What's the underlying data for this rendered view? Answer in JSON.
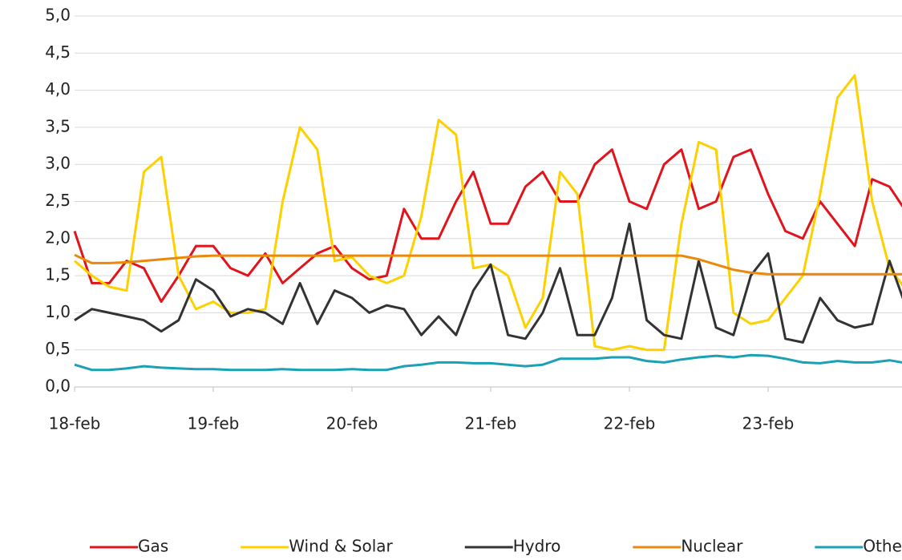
{
  "chart_data": {
    "type": "line",
    "categories": [
      "18-feb",
      null,
      null,
      null,
      null,
      null,
      null,
      null,
      "19-feb",
      null,
      null,
      null,
      null,
      null,
      null,
      null,
      "20-feb",
      null,
      null,
      null,
      null,
      null,
      null,
      null,
      "21-feb",
      null,
      null,
      null,
      null,
      null,
      null,
      null,
      "22-feb",
      null,
      null,
      null,
      null,
      null,
      null,
      null,
      "23-feb",
      null,
      null,
      null,
      null,
      null,
      null,
      null,
      null
    ],
    "series": [
      {
        "name": "Gas",
        "color": "#e1141c",
        "values": [
          2.1,
          1.4,
          1.4,
          1.7,
          1.6,
          1.15,
          1.5,
          1.9,
          1.9,
          1.6,
          1.5,
          1.8,
          1.4,
          1.6,
          1.8,
          1.9,
          1.6,
          1.45,
          1.5,
          2.4,
          2.0,
          2.0,
          2.5,
          2.9,
          2.2,
          2.2,
          2.7,
          2.9,
          2.5,
          2.5,
          3.0,
          3.2,
          2.5,
          2.4,
          3.0,
          3.2,
          2.4,
          2.5,
          3.1,
          3.2,
          2.6,
          2.1,
          2.0,
          2.5,
          2.2,
          1.9,
          2.8,
          2.7,
          2.35
        ]
      },
      {
        "name": "Wind & Solar",
        "color": "#fdd000",
        "values": [
          1.7,
          1.5,
          1.35,
          1.3,
          2.9,
          3.1,
          1.5,
          1.05,
          1.15,
          1.0,
          1.0,
          1.05,
          2.5,
          3.5,
          3.2,
          1.7,
          1.75,
          1.5,
          1.4,
          1.5,
          2.3,
          3.6,
          3.4,
          1.6,
          1.65,
          1.5,
          0.8,
          1.2,
          2.9,
          2.6,
          0.55,
          0.5,
          0.55,
          0.5,
          0.5,
          2.2,
          3.3,
          3.2,
          1.0,
          0.85,
          0.9,
          1.2,
          1.5,
          2.6,
          3.9,
          4.2,
          2.5,
          1.6,
          1.3
        ]
      },
      {
        "name": "Hydro",
        "color": "#333333",
        "values": [
          0.9,
          1.05,
          1.0,
          0.95,
          0.9,
          0.75,
          0.9,
          1.45,
          1.3,
          0.95,
          1.05,
          1.0,
          0.85,
          1.4,
          0.85,
          1.3,
          1.2,
          1.0,
          1.1,
          1.05,
          0.7,
          0.95,
          0.7,
          1.3,
          1.65,
          0.7,
          0.65,
          1.0,
          1.6,
          0.7,
          0.7,
          1.2,
          2.2,
          0.9,
          0.7,
          0.65,
          1.7,
          0.8,
          0.7,
          1.5,
          1.8,
          0.65,
          0.6,
          1.2,
          0.9,
          0.8,
          0.85,
          1.7,
          1.05
        ]
      },
      {
        "name": "Nuclear",
        "color": "#e8890c",
        "values": [
          1.78,
          1.67,
          1.67,
          1.68,
          1.7,
          1.72,
          1.74,
          1.76,
          1.77,
          1.77,
          1.77,
          1.77,
          1.77,
          1.77,
          1.77,
          1.77,
          1.77,
          1.77,
          1.77,
          1.77,
          1.77,
          1.77,
          1.77,
          1.77,
          1.77,
          1.77,
          1.77,
          1.77,
          1.77,
          1.77,
          1.77,
          1.77,
          1.77,
          1.77,
          1.77,
          1.77,
          1.72,
          1.65,
          1.58,
          1.54,
          1.52,
          1.52,
          1.52,
          1.52,
          1.52,
          1.52,
          1.52,
          1.52,
          1.52
        ]
      },
      {
        "name": "Other",
        "color": "#1aa1b5",
        "values": [
          0.3,
          0.23,
          0.23,
          0.25,
          0.28,
          0.26,
          0.25,
          0.24,
          0.24,
          0.23,
          0.23,
          0.23,
          0.24,
          0.23,
          0.23,
          0.23,
          0.24,
          0.23,
          0.23,
          0.28,
          0.3,
          0.33,
          0.33,
          0.32,
          0.32,
          0.3,
          0.28,
          0.3,
          0.38,
          0.38,
          0.38,
          0.4,
          0.4,
          0.35,
          0.33,
          0.37,
          0.4,
          0.42,
          0.4,
          0.43,
          0.42,
          0.38,
          0.33,
          0.32,
          0.35,
          0.33,
          0.33,
          0.36,
          0.32
        ]
      }
    ],
    "ylim": [
      0,
      5
    ],
    "yticks": [
      {
        "value": 0,
        "label": "0,0"
      },
      {
        "value": 0.5,
        "label": "0,5"
      },
      {
        "value": 1,
        "label": "1,0"
      },
      {
        "value": 1.5,
        "label": "1,5"
      },
      {
        "value": 2,
        "label": "2,0"
      },
      {
        "value": 2.5,
        "label": "2,5"
      },
      {
        "value": 3,
        "label": "3,0"
      },
      {
        "value": 3.5,
        "label": "3,5"
      },
      {
        "value": 4,
        "label": "4,0"
      },
      {
        "value": 4.5,
        "label": "4,5"
      },
      {
        "value": 5,
        "label": "5,0"
      }
    ],
    "grid": true,
    "legend": "bottom"
  }
}
